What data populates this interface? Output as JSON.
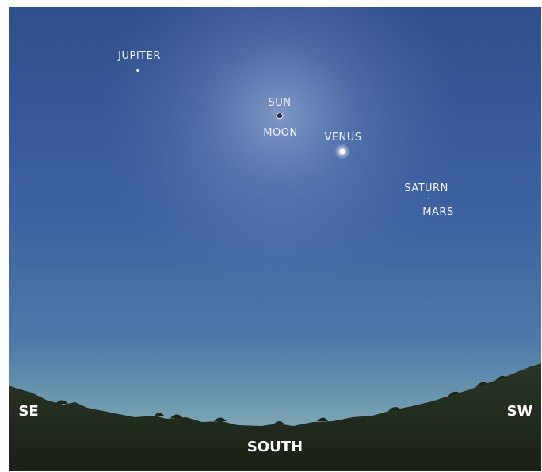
{
  "objects": [
    {
      "label": "JUPITER"
    },
    {
      "label": "SUN"
    },
    {
      "label": "MOON"
    },
    {
      "label": "VENUS"
    },
    {
      "label": "SATURN"
    },
    {
      "label": "MARS"
    }
  ],
  "directions": [
    "SE",
    "SOUTH",
    "SW"
  ]
}
